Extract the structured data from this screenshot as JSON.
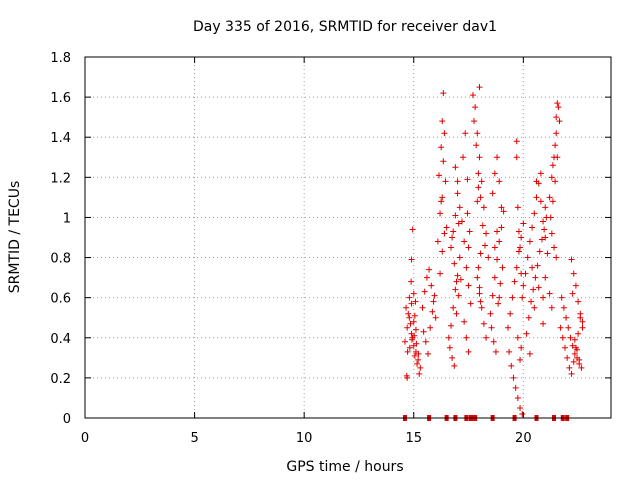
{
  "chart_data": {
    "type": "scatter",
    "title": "Day 335 of 2016, SRMTID for receiver dav1",
    "xlabel": "GPS time / hours",
    "ylabel": "SRMTID / TECUs",
    "xlim": [
      0,
      24
    ],
    "ylim": [
      0,
      1.8
    ],
    "xticks": [
      0,
      5,
      10,
      15,
      20
    ],
    "yticks": [
      0,
      0.2,
      0.4,
      0.6,
      0.8,
      1,
      1.2,
      1.4,
      1.6,
      1.8
    ],
    "x_tick_labels": [
      "0",
      "5",
      "10",
      "15",
      "20"
    ],
    "y_tick_labels": [
      "0",
      "0.2",
      "0.4",
      "0.6",
      "0.8",
      "1",
      "1.2",
      "1.4",
      "1.6",
      "1.8"
    ],
    "grid": true,
    "marker": "+",
    "color": "#e00000",
    "series": [
      {
        "name": "SRMTID",
        "x": [
          14.6,
          14.7,
          14.8,
          14.9,
          15.0,
          15.1,
          15.2,
          15.3,
          14.65,
          14.75,
          14.85,
          14.95,
          15.05,
          15.15,
          15.25,
          14.7,
          14.8,
          14.9,
          15.0,
          15.1,
          14.72,
          14.82,
          14.92,
          15.02,
          15.12,
          15.22,
          14.68,
          14.88,
          15.08,
          14.9,
          14.95,
          15.0,
          15.05,
          15.4,
          15.5,
          15.6,
          15.7,
          15.8,
          15.9,
          16.0,
          15.45,
          15.55,
          15.65,
          15.75,
          15.85,
          15.95,
          16.1,
          16.2,
          16.15,
          16.25,
          16.3,
          16.35,
          16.4,
          16.45,
          16.5,
          16.2,
          16.3,
          16.4,
          16.25,
          16.35,
          16.3,
          16.6,
          16.7,
          16.8,
          16.9,
          17.0,
          17.1,
          16.65,
          16.75,
          16.85,
          16.95,
          17.05,
          17.15,
          16.7,
          16.8,
          16.9,
          17.0,
          16.75,
          16.85,
          16.95,
          17.05,
          16.9,
          17.0,
          17.1,
          17.2,
          17.3,
          17.4,
          17.5,
          17.6,
          17.25,
          17.35,
          17.45,
          17.55,
          17.3,
          17.4,
          17.5,
          17.45,
          17.5,
          17.7,
          17.8,
          17.9,
          18.0,
          18.1,
          18.2,
          18.3,
          18.4,
          17.75,
          17.85,
          17.95,
          18.05,
          18.15,
          18.25,
          17.9,
          18.0,
          18.1,
          18.2,
          17.95,
          18.05,
          17.9,
          17.95,
          18.0,
          18.05,
          18.0,
          18.3,
          18.5,
          18.6,
          18.7,
          18.8,
          18.9,
          19.0,
          19.1,
          18.55,
          18.65,
          18.75,
          18.85,
          18.95,
          19.05,
          18.6,
          18.7,
          18.8,
          18.9,
          19.0,
          18.7,
          18.8,
          18.9,
          19.3,
          19.4,
          19.5,
          19.6,
          19.7,
          19.8,
          19.9,
          20.0,
          19.35,
          19.45,
          19.55,
          19.65,
          19.75,
          19.85,
          19.95,
          19.7,
          19.75,
          19.8,
          19.85,
          19.9,
          19.75,
          19.85,
          19.9,
          19.7,
          19.95,
          20.0,
          20.1,
          20.2,
          20.3,
          20.4,
          20.5,
          20.6,
          20.7,
          20.8,
          20.9,
          21.0,
          21.1,
          20.15,
          20.25,
          20.35,
          20.45,
          20.55,
          20.65,
          20.75,
          20.85,
          20.95,
          21.05,
          20.3,
          20.5,
          20.7,
          20.9,
          20.6,
          20.8,
          21.0,
          20.4,
          20.9,
          21.0,
          21.2,
          21.3,
          21.4,
          21.5,
          21.6,
          21.25,
          21.35,
          21.45,
          21.55,
          21.65,
          21.3,
          21.4,
          21.5,
          21.35,
          21.45,
          21.5,
          21.55,
          21.2,
          21.3,
          21.7,
          21.8,
          21.9,
          22.0,
          22.1,
          22.2,
          22.3,
          22.4,
          22.5,
          22.6,
          22.7,
          21.75,
          21.85,
          21.95,
          22.05,
          22.15,
          22.25,
          22.35,
          22.45,
          22.55,
          22.65,
          22.2,
          22.3,
          22.4,
          22.5,
          22.6,
          22.7,
          22.25,
          22.35,
          22.45,
          22.55
        ],
        "y": [
          0.38,
          0.45,
          0.5,
          0.42,
          0.36,
          0.33,
          0.29,
          0.25,
          0.55,
          0.52,
          0.47,
          0.4,
          0.31,
          0.27,
          0.22,
          0.2,
          0.6,
          0.57,
          0.48,
          0.44,
          0.33,
          0.35,
          0.39,
          0.41,
          0.37,
          0.32,
          0.21,
          0.68,
          0.58,
          0.79,
          0.94,
          0.62,
          0.51,
          0.55,
          0.63,
          0.7,
          0.74,
          0.66,
          0.58,
          0.5,
          0.43,
          0.38,
          0.32,
          0.45,
          0.53,
          0.61,
          0.88,
          1.02,
          1.21,
          1.35,
          1.48,
          1.62,
          1.42,
          1.18,
          0.95,
          0.72,
          0.83,
          0.92,
          1.08,
          1.28,
          1.1,
          0.4,
          0.46,
          0.55,
          0.64,
          0.71,
          0.8,
          0.35,
          0.3,
          0.26,
          0.52,
          0.61,
          0.69,
          0.85,
          0.93,
          1.01,
          1.12,
          0.9,
          0.77,
          0.68,
          0.97,
          1.25,
          1.18,
          1.05,
          0.98,
          0.88,
          0.75,
          0.66,
          0.57,
          1.3,
          1.42,
          1.19,
          0.93,
          0.48,
          0.4,
          0.33,
          1.02,
          0.85,
          1.61,
          1.55,
          1.42,
          1.3,
          1.18,
          1.05,
          0.92,
          0.8,
          1.48,
          1.36,
          1.22,
          1.1,
          0.96,
          0.86,
          0.7,
          0.62,
          0.55,
          0.47,
          0.75,
          0.82,
          1.08,
          1.15,
          0.65,
          0.58,
          1.65,
          0.4,
          0.52,
          0.61,
          0.7,
          0.79,
          0.88,
          0.95,
          1.03,
          0.45,
          0.38,
          0.33,
          0.57,
          0.67,
          0.75,
          1.12,
          1.22,
          1.3,
          1.18,
          1.05,
          0.85,
          0.93,
          0.6,
          0.45,
          0.52,
          0.6,
          0.68,
          0.75,
          0.83,
          0.9,
          0.97,
          0.33,
          0.26,
          0.2,
          0.15,
          0.1,
          0.05,
          0.02,
          1.38,
          1.05,
          0.93,
          0.85,
          0.72,
          0.4,
          0.29,
          0.35,
          1.3,
          0.6,
          0.66,
          0.72,
          0.8,
          0.88,
          0.95,
          1.02,
          1.1,
          1.17,
          1.08,
          0.98,
          0.9,
          0.82,
          0.42,
          0.5,
          0.58,
          0.64,
          0.7,
          0.76,
          0.83,
          0.89,
          0.94,
          1.0,
          0.32,
          0.55,
          0.65,
          0.47,
          1.18,
          1.22,
          1.05,
          0.75,
          0.6,
          0.7,
          1.1,
          1.2,
          1.3,
          1.42,
          1.55,
          1.0,
          1.08,
          1.18,
          1.3,
          1.48,
          0.92,
          0.85,
          0.8,
          1.26,
          1.36,
          1.5,
          1.57,
          0.62,
          0.55,
          0.45,
          0.4,
          0.35,
          0.3,
          0.25,
          0.22,
          0.28,
          0.35,
          0.42,
          0.5,
          0.48,
          0.6,
          0.55,
          0.5,
          0.45,
          0.4,
          0.36,
          0.32,
          0.3,
          0.27,
          0.25,
          0.79,
          0.72,
          0.66,
          0.58,
          0.52,
          0.45,
          0.62,
          0.39,
          0.34,
          0.29
        ],
        "rug_x": [
          14.6,
          15.7,
          16.5,
          16.9,
          17.4,
          17.6,
          17.7,
          17.8,
          18.6,
          19.6,
          20.6,
          21.4,
          21.8,
          22.0
        ]
      }
    ]
  }
}
